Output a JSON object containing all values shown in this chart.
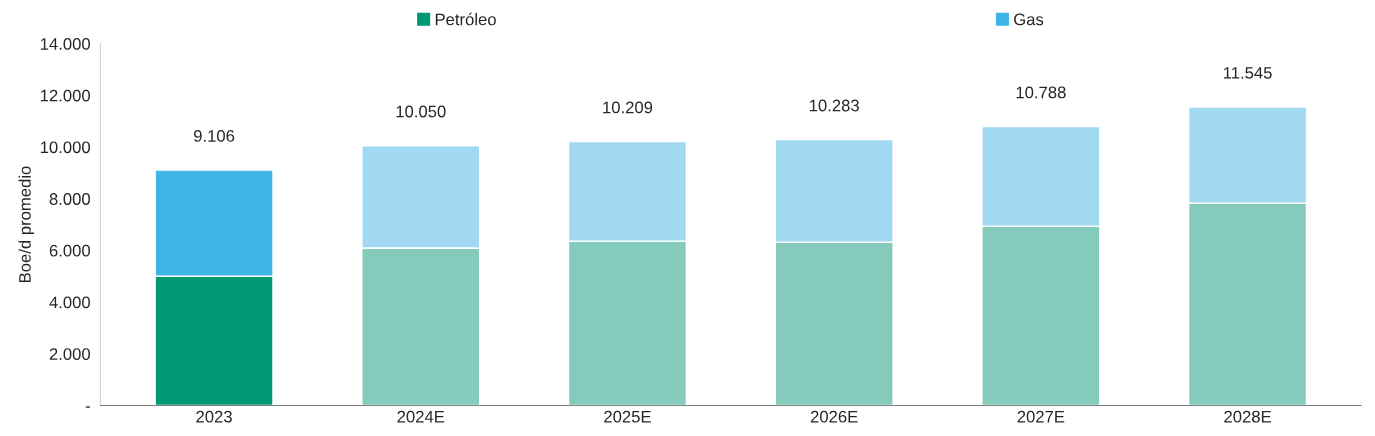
{
  "chart_data": {
    "type": "bar",
    "stacked": true,
    "ylabel": "Boe/d promedio",
    "categories": [
      "2023",
      "2024E",
      "2025E",
      "2026E",
      "2027E",
      "2028E"
    ],
    "series": [
      {
        "name": "Petróleo",
        "color": "#009874",
        "colors": [
          "#009874",
          "#84cbbb",
          "#84cbbb",
          "#84cbbb",
          "#84cbbb",
          "#84cbbb"
        ],
        "values": [
          5000,
          6090,
          6360,
          6320,
          6940,
          7830
        ]
      },
      {
        "name": "Gas",
        "color": "#41b4e6",
        "colors": [
          "#41b4e6",
          "#a2d9f2",
          "#a2d9f2",
          "#a2d9f2",
          "#a2d9f2",
          "#a2d9f2"
        ],
        "values": [
          4106,
          3960,
          3849,
          3963,
          3848,
          3715
        ]
      }
    ],
    "totals": [
      "9.106",
      "10.050",
      "10.209",
      "10.283",
      "10.788",
      "11.545"
    ],
    "ylim": [
      0,
      14000
    ],
    "yticks": [
      {
        "value": 0,
        "label": "-"
      },
      {
        "value": 2000,
        "label": "2.000"
      },
      {
        "value": 4000,
        "label": "4.000"
      },
      {
        "value": 6000,
        "label": "6.000"
      },
      {
        "value": 8000,
        "label": "8.000"
      },
      {
        "value": 10000,
        "label": "10.000"
      },
      {
        "value": 12000,
        "label": "12.000"
      },
      {
        "value": 14000,
        "label": "14.000"
      }
    ],
    "grid": false,
    "legend": "top"
  }
}
